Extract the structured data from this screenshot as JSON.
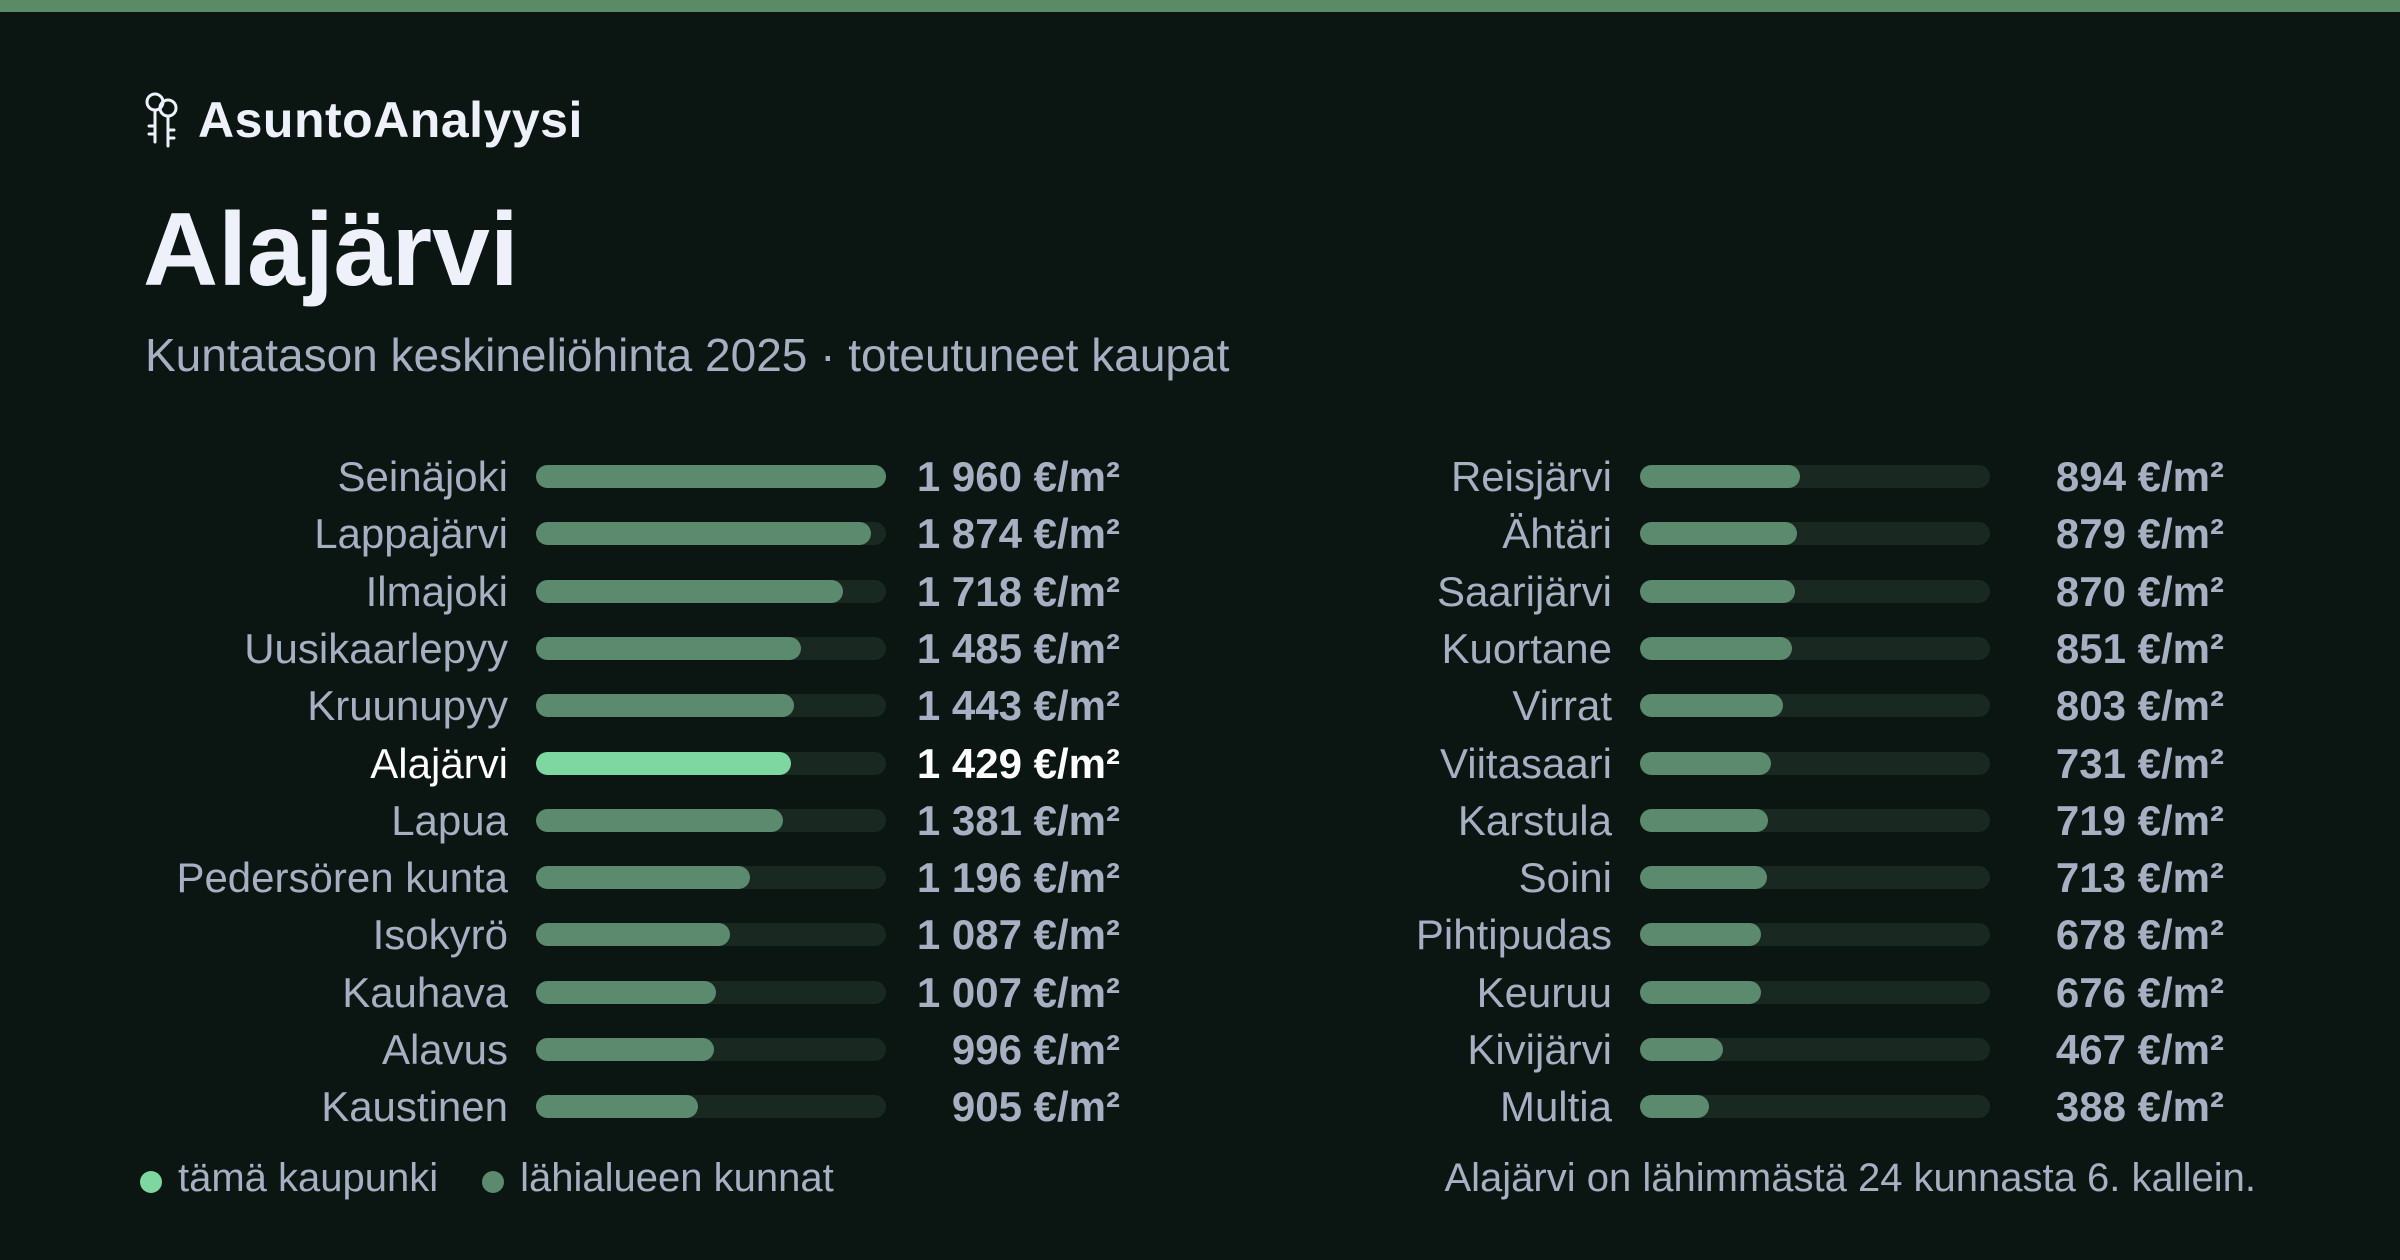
{
  "brand": {
    "name": "AsuntoAnalyysi",
    "icon": "keys-icon"
  },
  "page": {
    "title": "Alajärvi",
    "subtitle": "Kuntatason keskineliöhinta 2025 · toteutuneet kaupat"
  },
  "colors": {
    "top_bar": "#5a8a66",
    "highlight": "#7ed7a0",
    "neighbor": "#5c8a6e",
    "track": "#1a2822",
    "background": "#0b1613"
  },
  "chart_data": {
    "type": "bar",
    "orientation": "horizontal",
    "unit": "€/m²",
    "xlim": [
      0,
      1960
    ],
    "highlight": "Alajärvi",
    "categories": [
      "Seinäjoki",
      "Lappajärvi",
      "Ilmajoki",
      "Uusikaarlepyy",
      "Kruunupyy",
      "Alajärvi",
      "Lapua",
      "Pedersören kunta",
      "Isokyrö",
      "Kauhava",
      "Alavus",
      "Kaustinen",
      "Reisjärvi",
      "Ähtäri",
      "Saarijärvi",
      "Kuortane",
      "Virrat",
      "Viitasaari",
      "Karstula",
      "Soini",
      "Pihtipudas",
      "Keuruu",
      "Kivijärvi",
      "Multia"
    ],
    "values": [
      1960,
      1874,
      1718,
      1485,
      1443,
      1429,
      1381,
      1196,
      1087,
      1007,
      996,
      905,
      894,
      879,
      870,
      851,
      803,
      731,
      719,
      713,
      678,
      676,
      467,
      388
    ],
    "value_labels": [
      "1 960 €/m²",
      "1 874 €/m²",
      "1 718 €/m²",
      "1 485 €/m²",
      "1 443 €/m²",
      "1 429 €/m²",
      "1 381 €/m²",
      "1 196 €/m²",
      "1 087 €/m²",
      "1 007 €/m²",
      "996 €/m²",
      "905 €/m²",
      "894 €/m²",
      "879 €/m²",
      "870 €/m²",
      "851 €/m²",
      "803 €/m²",
      "731 €/m²",
      "719 €/m²",
      "713 €/m²",
      "678 €/m²",
      "676 €/m²",
      "467 €/m²",
      "388 €/m²"
    ]
  },
  "legend": {
    "this_city": "tämä kaupunki",
    "neighbors": "lähialueen kunnat"
  },
  "footnote": "Alajärvi on lähimmästä 24 kunnasta 6. kallein."
}
